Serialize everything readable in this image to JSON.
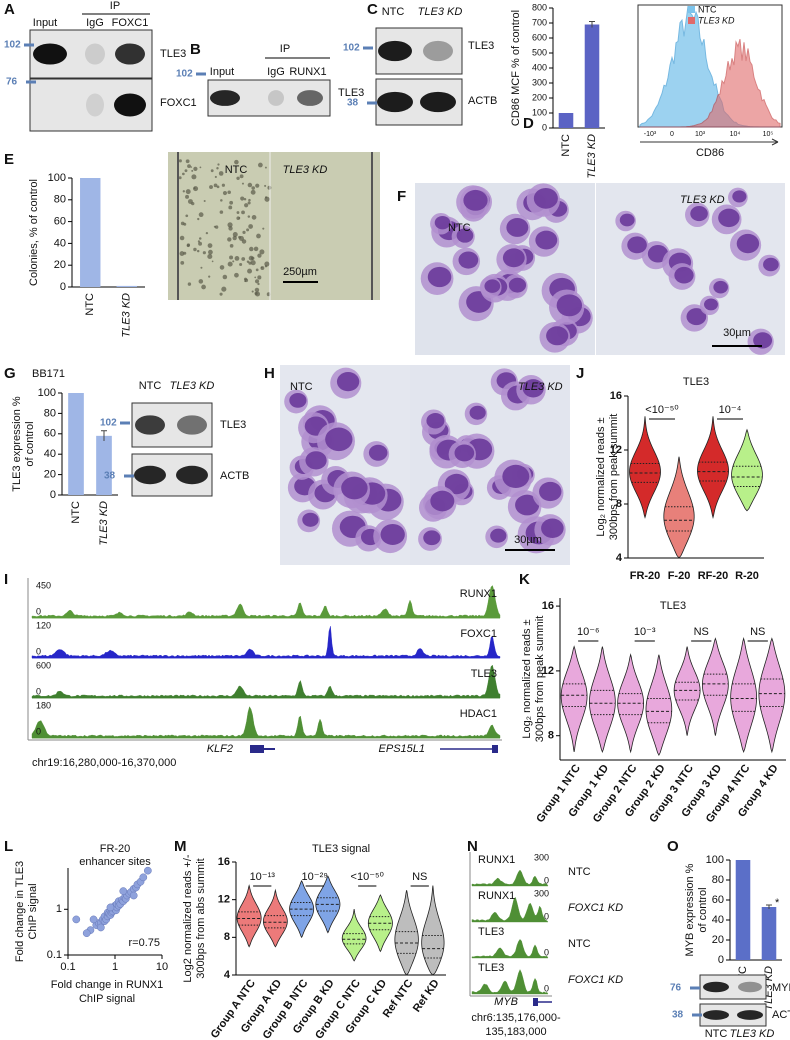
{
  "A": {
    "label": "A",
    "ip": "IP",
    "lanes": [
      "Input",
      "IgG",
      "FOXC1"
    ],
    "bands": [
      "TLE3",
      "FOXC1"
    ],
    "markers": [
      102,
      76
    ]
  },
  "B": {
    "label": "B",
    "ip": "IP",
    "lanes": [
      "Input",
      "IgG",
      "RUNX1"
    ],
    "bands": [
      "TLE3"
    ],
    "markers": [
      102
    ]
  },
  "C": {
    "label": "C",
    "lanes": [
      "NTC",
      "TLE3 KD"
    ],
    "bands": [
      "TLE3",
      "ACTB"
    ],
    "markers": [
      102,
      38
    ]
  },
  "D": {
    "label": "D",
    "chart": {
      "type": "bar",
      "ylabel": [
        "CD86 MCF % of control"
      ],
      "categories": [
        "NTC",
        "TLE3 KD"
      ],
      "values": [
        100,
        690
      ],
      "errors": [
        0,
        20
      ],
      "color": "#5b63c4",
      "ylim": [
        0,
        800
      ],
      "yticks": [
        0,
        100,
        200,
        300,
        400,
        500,
        600,
        700,
        800
      ]
    },
    "flow": {
      "legend": [
        "NTC",
        "TLE3 KD"
      ],
      "colors": [
        "#7cc4ec",
        "#e06a6a"
      ],
      "xlabel": "CD86",
      "xtick_labels": [
        "-10³",
        "0",
        "10³",
        "10⁴",
        "10⁵"
      ]
    }
  },
  "E": {
    "label": "E",
    "chart": {
      "type": "bar",
      "ylabel": [
        "Colonies, % of control"
      ],
      "categories": [
        "NTC",
        "TLE3 KD"
      ],
      "values": [
        100,
        1
      ],
      "errors": [
        0,
        0
      ],
      "color": "#9fb6e6",
      "ylim": [
        0,
        100
      ],
      "yticks": [
        0,
        20,
        40,
        60,
        80,
        100
      ]
    },
    "image": {
      "labels": [
        "NTC",
        "TLE3 KD"
      ],
      "scale": "250µm"
    }
  },
  "F": {
    "label": "F",
    "image": {
      "labels": [
        "NTC",
        "TLE3 KD"
      ],
      "scale": "30µm"
    }
  },
  "G": {
    "label": "G",
    "cell_line": "BB171",
    "chart": {
      "type": "bar",
      "ylabel": [
        "TLE3 expression %",
        "of control"
      ],
      "categories": [
        "NTC",
        "TLE3 KD"
      ],
      "values": [
        100,
        58
      ],
      "errors": [
        0,
        5
      ],
      "color": "#9fb6e6",
      "ylim": [
        0,
        100
      ],
      "yticks": [
        0,
        20,
        40,
        60,
        80,
        100
      ]
    },
    "blot": {
      "lanes": [
        "NTC",
        "TLE3 KD"
      ],
      "bands": [
        "TLE3",
        "ACTB"
      ],
      "markers": [
        102,
        38
      ]
    }
  },
  "H": {
    "label": "H",
    "image": {
      "labels": [
        "NTC",
        "TLE3 KD"
      ],
      "scale": "30µm"
    }
  },
  "I": {
    "label": "I",
    "tracks": [
      {
        "name": "RUNX1",
        "max": 450,
        "min": 0,
        "color": "#5a9a3a"
      },
      {
        "name": "FOXC1",
        "max": 120,
        "min": 0,
        "color": "#2626c8"
      },
      {
        "name": "TLE3",
        "max": 600,
        "min": 0,
        "color": "#3f7f2f"
      },
      {
        "name": "HDAC1",
        "max": 180,
        "min": 0,
        "color": "#4f8f35"
      }
    ],
    "genes": [
      "KLF2",
      "EPS15L1"
    ],
    "region": "chr19:16,280,000-16,370,000"
  },
  "J": {
    "label": "J",
    "chart": {
      "type": "violin",
      "title": "TLE3",
      "ylabel": [
        "Log₂ normalized reads ±",
        "300bps from peak summit"
      ],
      "categories": [
        "FR-20",
        "F-20",
        "RF-20",
        "R-20"
      ],
      "colors": [
        "#d42a2a",
        "#e8807a",
        "#d42a2a",
        "#b8f08a"
      ],
      "min": [
        7,
        4,
        7,
        7.5
      ],
      "q1": [
        9.6,
        6,
        9.7,
        9.3
      ],
      "median": [
        10.3,
        6.8,
        10.4,
        10
      ],
      "q3": [
        11,
        7.8,
        11.1,
        10.8
      ],
      "max": [
        14.5,
        11.5,
        14.5,
        13.5
      ],
      "ylim": [
        4,
        16
      ],
      "yticks": [
        4,
        8,
        12,
        16
      ],
      "annotations": [
        "<10⁻⁵⁰",
        "10⁻⁴"
      ]
    }
  },
  "K": {
    "label": "K",
    "chart": {
      "type": "violin",
      "title": "TLE3",
      "ylabel": [
        "Log₂ normalized reads ±",
        "300bps from peak summit"
      ],
      "categories": [
        "Group 1 NTC",
        "Group 1 KD",
        "Group 2 NTC",
        "Group 2 KD",
        "Group 3 NTC",
        "Group 3 KD",
        "Group 4 NTC",
        "Group 4 KD"
      ],
      "colors": [
        "#e8a8dc",
        "#e8a8dc",
        "#e8a8dc",
        "#e8a8dc",
        "#e8a8dc",
        "#e8a8dc",
        "#e8a8dc",
        "#e8a8dc"
      ],
      "min": [
        7,
        7,
        7,
        6.8,
        8,
        8,
        7,
        7
      ],
      "q1": [
        9.8,
        9.3,
        9.3,
        8.8,
        10.2,
        10.5,
        9.5,
        9.8
      ],
      "median": [
        10.5,
        10,
        10,
        9.5,
        10.8,
        11.2,
        10.3,
        10.6
      ],
      "q3": [
        11.2,
        10.8,
        10.6,
        10.3,
        11.3,
        11.8,
        11.2,
        11.5
      ],
      "max": [
        13.5,
        13.5,
        13,
        13,
        13.5,
        14,
        14,
        14
      ],
      "ylim": [
        6.5,
        16.5
      ],
      "yticks": [
        8,
        12,
        16
      ],
      "annotations": [
        "10⁻⁶",
        "10⁻³",
        "NS",
        "NS"
      ]
    }
  },
  "L": {
    "label": "L",
    "chart": {
      "type": "scatter",
      "title": [
        "FR-20",
        "enhancer sites"
      ],
      "ylabel": [
        "Fold change in TLE3",
        "ChIP signal"
      ],
      "xlabel": [
        "Fold change in RUNX1",
        "ChIP signal"
      ],
      "annotation": "r=0.75",
      "color": "#8fa2dc",
      "log": true,
      "x": [
        0.3,
        0.4,
        0.45,
        0.5,
        0.55,
        0.6,
        0.6,
        0.65,
        0.7,
        0.7,
        0.75,
        0.8,
        0.8,
        0.85,
        0.9,
        0.9,
        1,
        1,
        1.05,
        1.1,
        1.1,
        1.2,
        1.2,
        1.3,
        1.4,
        1.5,
        1.6,
        1.7,
        1.8,
        2,
        2.2,
        2.5,
        2.8,
        3,
        3.5,
        4,
        0.25,
        0.35,
        0.5,
        0.8,
        1.5,
        2.5,
        0.15,
        5
      ],
      "y": [
        0.35,
        0.45,
        0.5,
        0.5,
        0.6,
        0.55,
        0.7,
        0.6,
        0.7,
        0.85,
        0.8,
        0.75,
        0.95,
        0.85,
        0.9,
        1.1,
        1,
        1.2,
        0.95,
        1.1,
        1.3,
        1.2,
        1.5,
        1.3,
        1.6,
        1.5,
        1.8,
        1.7,
        2,
        2.2,
        2.4,
        2.8,
        3,
        3.5,
        4,
        5,
        0.3,
        0.6,
        0.4,
        1.1,
        2.5,
        2,
        0.6,
        7
      ],
      "xlim": [
        0.1,
        10
      ],
      "ylim": [
        0.1,
        8
      ],
      "xticks": [
        0.1,
        1,
        10
      ],
      "yticks": [
        0.1,
        1
      ]
    }
  },
  "M": {
    "label": "M",
    "chart": {
      "type": "violin",
      "title": "TLE3 signal",
      "ylabel": [
        "Log2 normalized reads +/-",
        "300bps from abs summit"
      ],
      "categories": [
        "Group A NTC",
        "Group A KD",
        "Group B NTC",
        "Group B KD",
        "Group C NTC",
        "Group C KD",
        "Ref NTC",
        "Ref KD"
      ],
      "colors": [
        "#ec7a7a",
        "#ec7a7a",
        "#7fa4e6",
        "#7fa4e6",
        "#b8f08a",
        "#b8f08a",
        "#bdbdbd",
        "#bdbdbd"
      ],
      "min": [
        7,
        7,
        8,
        8.5,
        5.5,
        6.5,
        4,
        4
      ],
      "q1": [
        9.3,
        9,
        10.3,
        10.8,
        7.3,
        8.8,
        6.3,
        5.8
      ],
      "median": [
        10,
        9.6,
        11,
        11.5,
        7.8,
        9.5,
        7.4,
        6.8
      ],
      "q3": [
        10.7,
        10.3,
        11.7,
        12.2,
        8.4,
        10.2,
        8.6,
        8.2
      ],
      "max": [
        13.5,
        13,
        14,
        14.5,
        11,
        12.5,
        13,
        13.5
      ],
      "ylim": [
        4,
        16
      ],
      "yticks": [
        4,
        8,
        12,
        16
      ],
      "annotations": [
        "10⁻¹³",
        "10⁻²⁹",
        "<10⁻⁵⁰",
        "NS"
      ]
    }
  },
  "N": {
    "label": "N",
    "tracks": [
      {
        "name": "RUNX1",
        "condition": "NTC",
        "max": 300,
        "min": 0
      },
      {
        "name": "RUNX1",
        "condition": "FOXC1 KD",
        "max": 300,
        "min": 0
      },
      {
        "name": "TLE3",
        "condition": "NTC",
        "min": 0
      },
      {
        "name": "TLE3",
        "condition": "FOXC1 KD",
        "min": 0
      }
    ],
    "gene": "MYB",
    "region": [
      "chr6:135,176,000-",
      "135,183,000"
    ]
  },
  "O": {
    "label": "O",
    "chart": {
      "type": "bar",
      "ylabel": [
        "MYB expression %",
        "of control"
      ],
      "categories": [
        "NTC",
        "TLE3 KD"
      ],
      "values": [
        100,
        53
      ],
      "errors": [
        0,
        2
      ],
      "color": "#5b6fc8",
      "ylim": [
        0,
        100
      ],
      "yticks": [
        0,
        20,
        40,
        60,
        80,
        100
      ],
      "annotations": [
        "*"
      ]
    },
    "blot": {
      "lanes": [
        "NTC",
        "TLE3 KD"
      ],
      "bands": [
        "MYB",
        "ACTB"
      ],
      "markers": [
        76,
        38
      ]
    }
  }
}
